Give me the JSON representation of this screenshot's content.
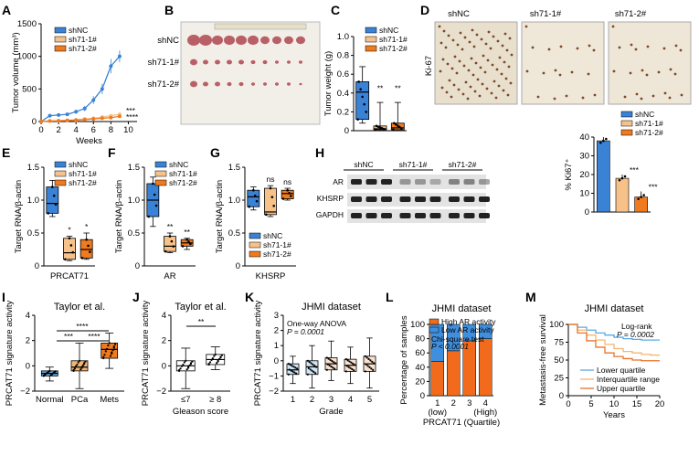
{
  "colors": {
    "shNC": "#3a82d6",
    "sh71_1": "#f6c28a",
    "sh71_2": "#f07a1e",
    "lower": "#5aa9e6",
    "inter": "#f4b673",
    "upper": "#e8742a",
    "highAR": "#f26b1d",
    "lowAR": "#3f8fde"
  },
  "panels": {
    "A": "A",
    "B": "B",
    "C": "C",
    "D": "D",
    "E": "E",
    "F": "F",
    "G": "G",
    "H": "H",
    "I": "I",
    "J": "J",
    "K": "K",
    "L": "L",
    "M": "M"
  },
  "legend3": [
    "shNC",
    "sh71-1#",
    "sh71-2#"
  ],
  "chart_data": [
    {
      "id": "A",
      "type": "line",
      "xlabel": "Weeks",
      "ylabel": "Tumor volume (mm³)",
      "xlim": [
        0,
        11
      ],
      "ylim": [
        0,
        1500
      ],
      "xticks": [
        "0",
        "2",
        "4",
        "6",
        "8",
        "10"
      ],
      "yticks": [
        "0",
        "500",
        "1000",
        "1500"
      ],
      "series": [
        {
          "name": "shNC",
          "x": [
            0,
            1,
            2,
            3,
            4,
            5,
            6,
            7,
            8,
            9
          ],
          "values": [
            0,
            90,
            100,
            110,
            150,
            200,
            330,
            500,
            850,
            1000
          ],
          "err": [
            0,
            20,
            20,
            20,
            30,
            40,
            60,
            80,
            110,
            90
          ]
        },
        {
          "name": "sh71-1#",
          "x": [
            0,
            1,
            2,
            3,
            4,
            5,
            6,
            7,
            8,
            9
          ],
          "values": [
            0,
            10,
            15,
            20,
            30,
            40,
            50,
            70,
            90,
            110
          ],
          "err": [
            0,
            5,
            5,
            5,
            10,
            10,
            10,
            15,
            20,
            25
          ]
        },
        {
          "name": "sh71-2#",
          "x": [
            0,
            1,
            2,
            3,
            4,
            5,
            6,
            7,
            8,
            9
          ],
          "values": [
            0,
            8,
            10,
            15,
            20,
            30,
            40,
            50,
            60,
            80
          ],
          "err": [
            0,
            5,
            5,
            5,
            5,
            10,
            10,
            10,
            15,
            15
          ]
        }
      ],
      "annotations": [
        "***",
        "****"
      ]
    },
    {
      "id": "C",
      "type": "box",
      "ylabel": "Tumor weight (g)",
      "ylim": [
        0,
        1.0
      ],
      "yticks": [
        "0",
        "0.2",
        "0.4",
        "0.6",
        "0.8",
        "1.0"
      ],
      "boxes": [
        {
          "name": "shNC",
          "min": 0.08,
          "q1": 0.12,
          "median": 0.41,
          "q3": 0.52,
          "max": 0.68
        },
        {
          "name": "sh71-1#",
          "min": 0.0,
          "q1": 0.01,
          "median": 0.02,
          "q3": 0.05,
          "max": 0.3
        },
        {
          "name": "sh71-2#",
          "min": 0.0,
          "q1": 0.01,
          "median": 0.03,
          "q3": 0.08,
          "max": 0.3
        }
      ],
      "annotations": [
        "**",
        "**"
      ]
    },
    {
      "id": "D_bar",
      "type": "bar",
      "ylabel": "% Ki67⁺",
      "ylim": [
        0,
        40
      ],
      "yticks": [
        "0",
        "10",
        "20",
        "30",
        "40"
      ],
      "categories": [
        "shNC",
        "sh71-1#",
        "sh71-2#"
      ],
      "values": [
        38,
        18,
        8
      ],
      "err": [
        2,
        2,
        3
      ],
      "annotations": [
        "***",
        "***"
      ]
    },
    {
      "id": "E",
      "type": "box",
      "ylabel": "Target RNA/β-actin",
      "xlabel": "PRCAT71",
      "ylim": [
        0,
        1.5
      ],
      "yticks": [
        "0",
        "0.5",
        "1.0",
        "1.5"
      ],
      "boxes": [
        {
          "name": "shNC",
          "min": 0.75,
          "q1": 0.8,
          "median": 0.95,
          "q3": 1.2,
          "max": 1.3
        },
        {
          "name": "sh71-1#",
          "min": 0.08,
          "q1": 0.1,
          "median": 0.2,
          "q3": 0.42,
          "max": 0.45
        },
        {
          "name": "sh71-2#",
          "min": 0.1,
          "q1": 0.12,
          "median": 0.25,
          "q3": 0.4,
          "max": 0.5
        }
      ],
      "annotations": [
        "*",
        "*"
      ]
    },
    {
      "id": "F",
      "type": "box",
      "ylabel": "Target RNA/β-actin",
      "xlabel": "AR",
      "ylim": [
        0,
        1.5
      ],
      "yticks": [
        "0",
        "0.5",
        "1.0",
        "1.5"
      ],
      "boxes": [
        {
          "name": "shNC",
          "min": 0.6,
          "q1": 0.75,
          "median": 1.0,
          "q3": 1.25,
          "max": 1.35
        },
        {
          "name": "sh71-1#",
          "min": 0.2,
          "q1": 0.22,
          "median": 0.3,
          "q3": 0.45,
          "max": 0.5
        },
        {
          "name": "sh71-2#",
          "min": 0.25,
          "q1": 0.3,
          "median": 0.35,
          "q3": 0.4,
          "max": 0.42
        }
      ],
      "annotations": [
        "**",
        "**"
      ]
    },
    {
      "id": "G",
      "type": "box",
      "ylabel": "Target RNA/β-actin",
      "xlabel": "KHSRP",
      "ylim": [
        0,
        1.5
      ],
      "yticks": [
        "0",
        "0.5",
        "1.0",
        "1.5"
      ],
      "boxes": [
        {
          "name": "shNC",
          "min": 0.85,
          "q1": 0.9,
          "median": 1.05,
          "q3": 1.15,
          "max": 1.2
        },
        {
          "name": "sh71-1#",
          "min": 0.75,
          "q1": 0.78,
          "median": 0.82,
          "q3": 1.18,
          "max": 1.22
        },
        {
          "name": "sh71-2#",
          "min": 1.0,
          "q1": 1.02,
          "median": 1.1,
          "q3": 1.15,
          "max": 1.18
        }
      ],
      "annotations": [
        "ns",
        "ns"
      ]
    },
    {
      "id": "I",
      "type": "box",
      "title": "Taylor et al.",
      "ylabel": "PRCAT71 signature activity",
      "ylim": [
        -2,
        4
      ],
      "yticks": [
        "−2",
        "0",
        "2",
        "4"
      ],
      "boxes": [
        {
          "name": "Normal",
          "min": -1.2,
          "q1": -0.8,
          "median": -0.6,
          "q3": -0.4,
          "max": -0.1
        },
        {
          "name": "PCa",
          "min": -1.8,
          "q1": -0.4,
          "median": -0.1,
          "q3": 0.4,
          "max": 1.8
        },
        {
          "name": "Mets",
          "min": -0.2,
          "q1": 0.6,
          "median": 1.3,
          "q3": 1.8,
          "max": 2.6
        }
      ],
      "annotations": [
        "***",
        "****",
        "****"
      ]
    },
    {
      "id": "J",
      "type": "box",
      "title": "Taylor et al.",
      "ylabel": "PRCAT71 signature activity",
      "xlabel": "Gleason score",
      "ylim": [
        -2,
        4
      ],
      "yticks": [
        "−2",
        "0",
        "2",
        "4"
      ],
      "boxes": [
        {
          "name": "≤7",
          "min": -1.8,
          "q1": -0.4,
          "median": 0.0,
          "q3": 0.4,
          "max": 1.4
        },
        {
          "name": "≥ 8",
          "min": -0.3,
          "q1": 0.1,
          "median": 0.5,
          "q3": 0.9,
          "max": 1.5
        }
      ],
      "annotations": [
        "**"
      ]
    },
    {
      "id": "K",
      "type": "box",
      "title": "JHMI dataset",
      "ylabel": "PRCAT71 signature activity",
      "xlabel": "Grade",
      "ylim": [
        -2,
        3
      ],
      "yticks": [
        "−2",
        "−1",
        "0",
        "1",
        "2",
        "3"
      ],
      "boxes": [
        {
          "name": "1",
          "min": -1.5,
          "q1": -0.9,
          "median": -0.6,
          "q3": -0.2,
          "max": 0.3
        },
        {
          "name": "2",
          "min": -1.8,
          "q1": -0.9,
          "median": -0.4,
          "q3": 0.0,
          "max": 1.0
        },
        {
          "name": "3",
          "min": -1.3,
          "q1": -0.6,
          "median": -0.2,
          "q3": 0.2,
          "max": 1.3
        },
        {
          "name": "4",
          "min": -1.5,
          "q1": -0.7,
          "median": -0.3,
          "q3": 0.1,
          "max": 0.9
        },
        {
          "name": "5",
          "min": -1.8,
          "q1": -0.7,
          "median": -0.2,
          "q3": 0.3,
          "max": 1.5
        }
      ],
      "annotations": [
        "One-way ANOVA",
        "P = 0.0001"
      ]
    },
    {
      "id": "L",
      "type": "bar",
      "stacked": true,
      "title": "JHMI dataset",
      "ylabel": "Percentage of samples",
      "xlabel": "PRCAT71 (Quartile)",
      "ylim": [
        0,
        100
      ],
      "yticks": [
        "0",
        "20",
        "40",
        "60",
        "80",
        "100"
      ],
      "categories": [
        "1",
        "2",
        "3",
        "4"
      ],
      "sublabels": [
        "(low)",
        "",
        "",
        "(High)"
      ],
      "series": [
        {
          "name": "High AR activity",
          "values": [
            48,
            63,
            77,
            80
          ]
        },
        {
          "name": "Low AR activity",
          "values": [
            52,
            37,
            23,
            20
          ]
        }
      ],
      "annotations": [
        "Chi-square test",
        "P < 0.0001"
      ]
    },
    {
      "id": "M",
      "type": "line",
      "title": "JHMI dataset",
      "ylabel": "Metastasis-free survival",
      "xlabel": "Years",
      "xlim": [
        0,
        20
      ],
      "ylim": [
        0,
        100
      ],
      "xticks": [
        "0",
        "5",
        "10",
        "15",
        "20"
      ],
      "yticks": [
        "0",
        "25",
        "50",
        "75",
        "100"
      ],
      "series": [
        {
          "name": "Lower quartile",
          "x": [
            0,
            2,
            4,
            6,
            8,
            10,
            12,
            14,
            16,
            18,
            20
          ],
          "values": [
            100,
            96,
            92,
            88,
            85,
            82,
            80,
            79,
            78,
            78,
            78
          ]
        },
        {
          "name": "Interquartile range",
          "x": [
            0,
            2,
            4,
            6,
            8,
            10,
            12,
            14,
            16,
            18,
            20
          ],
          "values": [
            100,
            92,
            85,
            78,
            72,
            66,
            62,
            60,
            58,
            57,
            57
          ]
        },
        {
          "name": "Upper quartile",
          "x": [
            0,
            2,
            4,
            6,
            8,
            10,
            12,
            14,
            16,
            18,
            20
          ],
          "values": [
            100,
            88,
            77,
            68,
            60,
            55,
            52,
            50,
            49,
            49,
            49
          ]
        }
      ],
      "annotations": [
        "Log-rank",
        "P = 0.0002"
      ]
    }
  ],
  "B": {
    "rows": [
      "shNC",
      "sh71-1#",
      "sh71-2#"
    ]
  },
  "D": {
    "headers": [
      "shNC",
      "sh71-1#",
      "sh71-2#"
    ],
    "side": "Ki-67"
  },
  "H": {
    "groups": [
      "shNC",
      "sh71-1#",
      "sh71-2#"
    ],
    "rows": [
      "AR",
      "KHSRP",
      "GAPDH"
    ]
  },
  "L_legend": [
    "High AR activity",
    "Low AR activity"
  ],
  "L_annot": [
    "Chi-square test",
    "P < 0.0001"
  ],
  "K_annot": [
    "One-way ANOVA",
    "P = 0.0001"
  ],
  "M_annot": [
    "Log-rank",
    "P = 0.0002"
  ],
  "M_legend": [
    "Lower quartile",
    "Interquartile range",
    "Upper quartile"
  ]
}
